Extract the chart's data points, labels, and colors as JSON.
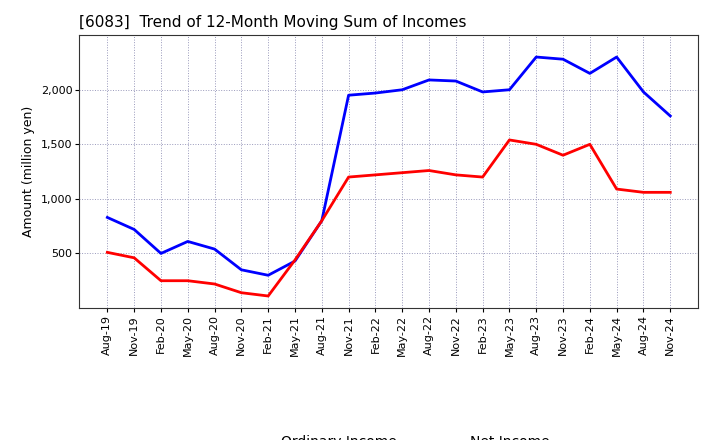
{
  "title": "[6083]  Trend of 12-Month Moving Sum of Incomes",
  "ylabel": "Amount (million yen)",
  "x_labels": [
    "Aug-19",
    "Nov-19",
    "Feb-20",
    "May-20",
    "Aug-20",
    "Nov-20",
    "Feb-21",
    "May-21",
    "Aug-21",
    "Nov-21",
    "Feb-22",
    "May-22",
    "Aug-22",
    "Nov-22",
    "Feb-23",
    "May-23",
    "Aug-23",
    "Nov-23",
    "Feb-24",
    "May-24",
    "Aug-24",
    "Nov-24"
  ],
  "ordinary_income": [
    830,
    720,
    500,
    610,
    540,
    350,
    300,
    430,
    800,
    1950,
    1970,
    2000,
    2090,
    2080,
    1980,
    2000,
    2300,
    2280,
    2150,
    2300,
    1980,
    1760
  ],
  "net_income": [
    510,
    460,
    250,
    250,
    220,
    140,
    110,
    440,
    800,
    1200,
    1220,
    1240,
    1260,
    1220,
    1200,
    1540,
    1500,
    1400,
    1500,
    1090,
    1060,
    1060
  ],
  "ordinary_color": "#0000FF",
  "net_color": "#FF0000",
  "background_color": "#FFFFFF",
  "grid_color": "#9999BB",
  "ylim": [
    0,
    2500
  ],
  "yticks": [
    500,
    1000,
    1500,
    2000
  ],
  "line_width": 2.0,
  "title_fontsize": 11,
  "label_fontsize": 9,
  "tick_fontsize": 8
}
